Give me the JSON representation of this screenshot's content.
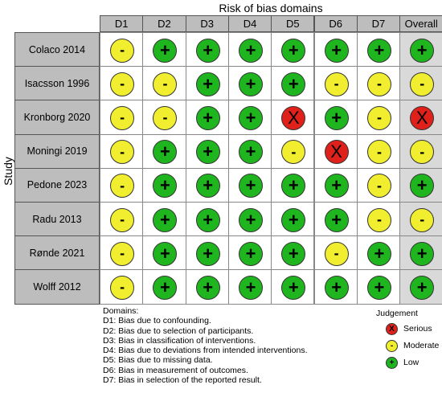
{
  "title": "Risk of bias domains",
  "y_label": "Study",
  "domains": [
    "D1",
    "D2",
    "D3",
    "D4",
    "D5",
    "D6",
    "D7",
    "Overall"
  ],
  "colors": {
    "serious": "#e0201b",
    "moderate": "#f0ee2e",
    "low": "#1fb51f"
  },
  "symbols": {
    "serious": "X",
    "moderate": "-",
    "low": "+"
  },
  "studies": [
    {
      "name": "Colaco 2014",
      "judgements": [
        "moderate",
        "low",
        "low",
        "low",
        "low",
        "low",
        "low",
        "low"
      ]
    },
    {
      "name": "Isacsson 1996",
      "judgements": [
        "moderate",
        "moderate",
        "low",
        "low",
        "low",
        "moderate",
        "moderate",
        "moderate"
      ]
    },
    {
      "name": "Kronborg 2020",
      "judgements": [
        "moderate",
        "moderate",
        "low",
        "low",
        "serious",
        "low",
        "moderate",
        "serious"
      ]
    },
    {
      "name": "Moningi 2019",
      "judgements": [
        "moderate",
        "low",
        "low",
        "low",
        "moderate",
        "serious",
        "moderate",
        "moderate"
      ]
    },
    {
      "name": "Pedone 2023",
      "judgements": [
        "moderate",
        "low",
        "low",
        "low",
        "low",
        "low",
        "moderate",
        "low"
      ]
    },
    {
      "name": "Radu 2013",
      "judgements": [
        "moderate",
        "low",
        "low",
        "low",
        "low",
        "low",
        "moderate",
        "moderate"
      ]
    },
    {
      "name": "Rønde 2021",
      "judgements": [
        "moderate",
        "low",
        "low",
        "low",
        "low",
        "moderate",
        "low",
        "low"
      ]
    },
    {
      "name": "Wolff 2012",
      "judgements": [
        "moderate",
        "low",
        "low",
        "low",
        "low",
        "low",
        "low",
        "low"
      ]
    }
  ],
  "domain_legend": {
    "heading": "Domains:",
    "items": [
      "D1: Bias due to confounding.",
      "D2: Bias due to selection of participants.",
      "D3: Bias in classification of interventions.",
      "D4: Bias due to deviations from intended interventions.",
      "D5: Bias due to missing data.",
      "D6: Bias in measurement of outcomes.",
      "D7: Bias in selection of the reported result."
    ]
  },
  "judgement_legend": {
    "heading": "Judgement",
    "items": [
      {
        "key": "serious",
        "label": "Serious"
      },
      {
        "key": "moderate",
        "label": "Moderate"
      },
      {
        "key": "low",
        "label": "Low"
      }
    ]
  }
}
